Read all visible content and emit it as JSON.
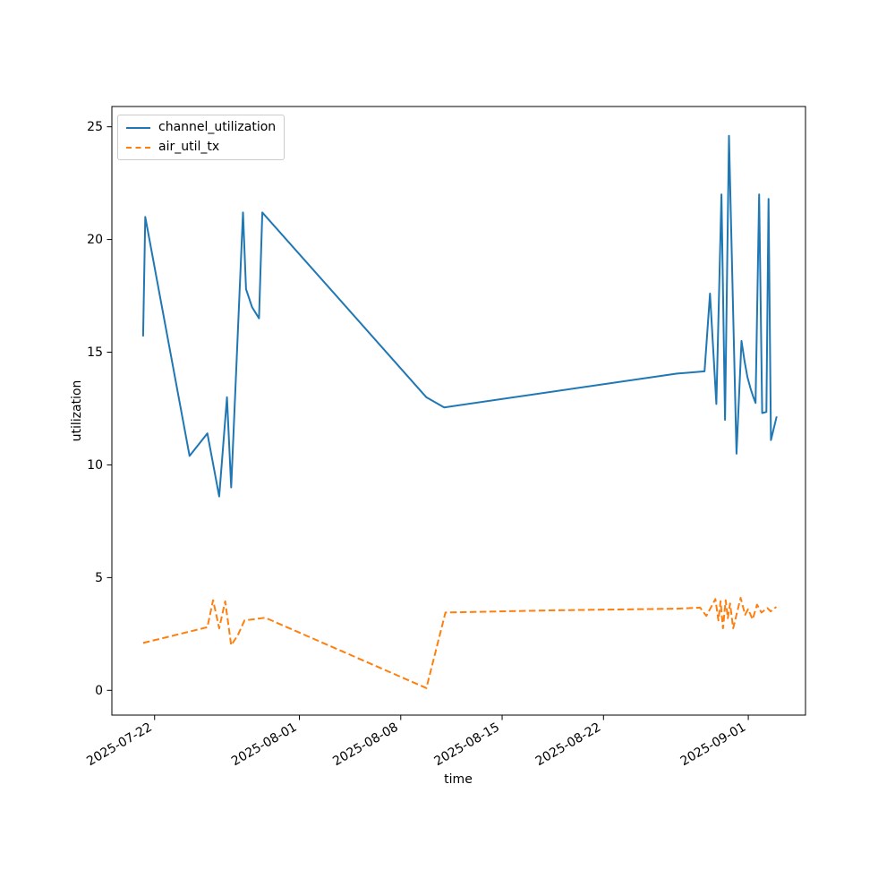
{
  "figure": {
    "background": "#ffffff",
    "text_color": "#000000",
    "spine_color": "#000000"
  },
  "chart_data": {
    "type": "line",
    "title": "",
    "xlabel": "time",
    "ylabel": "utilization",
    "grid": false,
    "xlim": [
      "2025-07-19T01:12",
      "2025-09-04T22:48"
    ],
    "ylim": [
      -1.1,
      25.9
    ],
    "x_axis": {
      "tick_labels": [
        "2025-07-22",
        "2025-08-01",
        "2025-08-08",
        "2025-08-15",
        "2025-08-22",
        "2025-09-01"
      ],
      "tick_label_rotation_deg": 30
    },
    "y_axis": {
      "ticks": [
        0,
        5,
        10,
        15,
        20,
        25
      ]
    },
    "legend": {
      "position": "upper-left",
      "entries": [
        "channel_utilization",
        "air_util_tx"
      ]
    },
    "series": [
      {
        "name": "channel_utilization",
        "color": "#1f77b4",
        "line_style": "solid",
        "points": [
          [
            "2025-07-21T05:00",
            15.7
          ],
          [
            "2025-07-21T08:30",
            21.0
          ],
          [
            "2025-07-24T10:00",
            10.4
          ],
          [
            "2025-07-25T15:30",
            11.4
          ],
          [
            "2025-07-26T11:00",
            8.6
          ],
          [
            "2025-07-27T00:00",
            13.0
          ],
          [
            "2025-07-27T07:00",
            9.0
          ],
          [
            "2025-07-28T02:30",
            21.2
          ],
          [
            "2025-07-28T07:30",
            17.8
          ],
          [
            "2025-07-28T17:30",
            17.0
          ],
          [
            "2025-07-29T05:00",
            16.5
          ],
          [
            "2025-07-29T10:30",
            21.2
          ],
          [
            "2025-08-09T18:30",
            13.0
          ],
          [
            "2025-08-11T00:00",
            12.55
          ],
          [
            "2025-08-27T02:00",
            14.05
          ],
          [
            "2025-08-28T23:30",
            14.15
          ],
          [
            "2025-08-29T08:30",
            17.6
          ],
          [
            "2025-08-29T19:00",
            12.7
          ],
          [
            "2025-08-30T03:30",
            22.0
          ],
          [
            "2025-08-30T09:30",
            12.0
          ],
          [
            "2025-08-30T16:00",
            24.6
          ],
          [
            "2025-08-31T04:30",
            10.5
          ],
          [
            "2025-08-31T12:45",
            15.5
          ],
          [
            "2025-08-31T17:45",
            14.6
          ],
          [
            "2025-08-31T22:30",
            13.9
          ],
          [
            "2025-09-01T03:30",
            13.4
          ],
          [
            "2025-09-01T08:30",
            13.0
          ],
          [
            "2025-09-01T12:00",
            12.75
          ],
          [
            "2025-09-01T18:00",
            22.0
          ],
          [
            "2025-09-01T23:00",
            12.3
          ],
          [
            "2025-09-02T06:00",
            12.35
          ],
          [
            "2025-09-02T09:30",
            21.8
          ],
          [
            "2025-09-02T13:30",
            11.1
          ],
          [
            "2025-09-02T23:00",
            12.15
          ]
        ]
      },
      {
        "name": "air_util_tx",
        "color": "#ff7f0e",
        "line_style": "dashed",
        "points": [
          [
            "2025-07-21T05:00",
            2.1
          ],
          [
            "2025-07-25T15:30",
            2.8
          ],
          [
            "2025-07-26T01:00",
            4.0
          ],
          [
            "2025-07-26T11:00",
            2.75
          ],
          [
            "2025-07-26T21:00",
            3.95
          ],
          [
            "2025-07-27T07:00",
            2.0
          ],
          [
            "2025-07-27T18:00",
            2.45
          ],
          [
            "2025-07-28T05:00",
            3.1
          ],
          [
            "2025-07-29T15:30",
            3.22
          ],
          [
            "2025-08-09T18:30",
            0.1
          ],
          [
            "2025-08-11T02:00",
            3.45
          ],
          [
            "2025-08-18T14:00",
            3.55
          ],
          [
            "2025-08-27T02:00",
            3.62
          ],
          [
            "2025-08-28T16:00",
            3.67
          ],
          [
            "2025-08-29T02:30",
            3.3
          ],
          [
            "2025-08-29T17:30",
            4.05
          ],
          [
            "2025-08-29T22:30",
            3.1
          ],
          [
            "2025-08-30T02:00",
            3.95
          ],
          [
            "2025-08-30T06:00",
            2.75
          ],
          [
            "2025-08-30T10:30",
            4.0
          ],
          [
            "2025-08-30T14:00",
            3.2
          ],
          [
            "2025-08-30T17:45",
            3.85
          ],
          [
            "2025-08-30T23:00",
            2.75
          ],
          [
            "2025-08-31T11:15",
            4.1
          ],
          [
            "2025-08-31T18:40",
            3.35
          ],
          [
            "2025-08-31T23:45",
            3.6
          ],
          [
            "2025-09-01T07:10",
            3.15
          ],
          [
            "2025-09-01T14:30",
            3.8
          ],
          [
            "2025-09-01T21:50",
            3.45
          ],
          [
            "2025-09-02T07:40",
            3.65
          ],
          [
            "2025-09-02T13:10",
            3.5
          ],
          [
            "2025-09-02T22:30",
            3.7
          ]
        ]
      }
    ]
  }
}
